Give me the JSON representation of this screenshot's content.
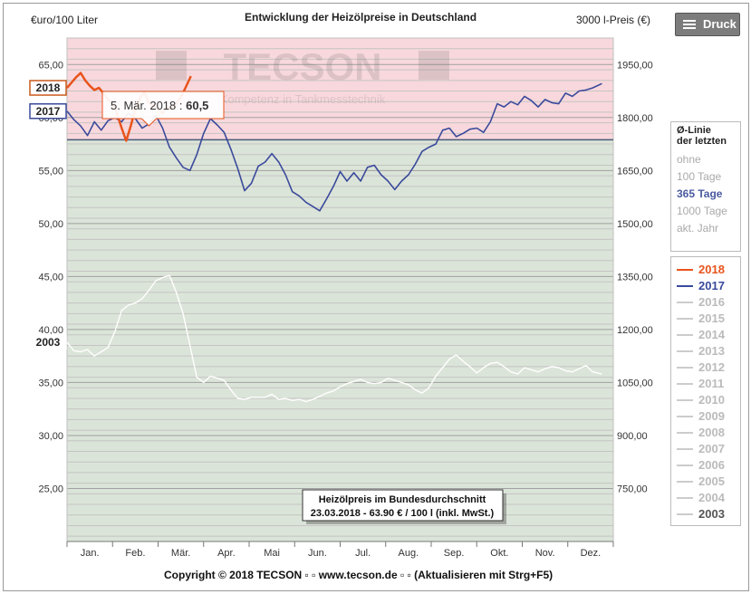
{
  "header": {
    "ylabel_left": "€uro/100 Liter",
    "title": "Entwicklung der Heizölpreise in Deutschland",
    "ylabel_right": "3000 l-Preis (€)"
  },
  "druck_button": {
    "label": "Druck",
    "icon": "menu-icon"
  },
  "watermark": {
    "logo_text": "TECSON",
    "subtitle": "Kompetenz in Tankmesstechnik"
  },
  "tooltip": {
    "date": "5. Mär. 2018 :",
    "value": "60,5"
  },
  "info_box": {
    "line1": "Heizölpreis im Bundesdurchschnitt",
    "line2": "23.03.2018 - 63.90 € / 100 l (inkl. MwSt.)"
  },
  "footer": {
    "copyright": "Copyright © 2018 TECSON ▫ ▫ www.tecson.de ▫ ▫ (Aktualisieren mit Strg+F5)"
  },
  "avg_panel": {
    "heading_1": "Ø-Linie",
    "heading_2": "der letzten",
    "options": [
      {
        "label": "ohne",
        "active": false
      },
      {
        "label": "100 Tage",
        "active": false
      },
      {
        "label": "365 Tage",
        "active": true
      },
      {
        "label": "1000 Tage",
        "active": false
      },
      {
        "label": "akt. Jahr",
        "active": false
      }
    ]
  },
  "legend": [
    {
      "label": "2018",
      "color": "#e8541c",
      "active": true
    },
    {
      "label": "2017",
      "color": "#3a4a9c",
      "active": true
    },
    {
      "label": "2016",
      "color": "#cccccc",
      "active": false
    },
    {
      "label": "2015",
      "color": "#cccccc",
      "active": false
    },
    {
      "label": "2014",
      "color": "#cccccc",
      "active": false
    },
    {
      "label": "2013",
      "color": "#cccccc",
      "active": false
    },
    {
      "label": "2012",
      "color": "#cccccc",
      "active": false
    },
    {
      "label": "2011",
      "color": "#cccccc",
      "active": false
    },
    {
      "label": "2010",
      "color": "#cccccc",
      "active": false
    },
    {
      "label": "2009",
      "color": "#cccccc",
      "active": false
    },
    {
      "label": "2008",
      "color": "#cccccc",
      "active": false
    },
    {
      "label": "2007",
      "color": "#cccccc",
      "active": false
    },
    {
      "label": "2006",
      "color": "#cccccc",
      "active": false
    },
    {
      "label": "2005",
      "color": "#cccccc",
      "active": false
    },
    {
      "label": "2004",
      "color": "#cccccc",
      "active": false
    },
    {
      "label": "2003",
      "color": "#555555",
      "active": true
    }
  ],
  "chart_data": {
    "type": "line",
    "title": "Entwicklung der Heizölpreise in Deutschland",
    "ylabel": "€uro/100 Liter",
    "ylabel_right": "3000 l-Preis (€)",
    "ylim": [
      20,
      67.5
    ],
    "y_ticks": [
      "25,00",
      "30,00",
      "35,00",
      "40,00",
      "45,00",
      "50,00",
      "55,00",
      "60,00",
      "65,00"
    ],
    "y_tick_values": [
      25,
      30,
      35,
      40,
      45,
      50,
      55,
      60,
      65
    ],
    "y2_ticks": [
      "750,00",
      "900,00",
      "1050,00",
      "1200,00",
      "1350,00",
      "1500,00",
      "1650,00",
      "1800,00",
      "1950,00"
    ],
    "y2_tick_values": [
      750,
      900,
      1050,
      1200,
      1350,
      1500,
      1650,
      1800,
      1950
    ],
    "x_categories": [
      "Jan.",
      "Feb.",
      "Mär.",
      "Apr.",
      "Mai",
      "Jun.",
      "Jul.",
      "Aug.",
      "Sep.",
      "Okt.",
      "Nov.",
      "Dez."
    ],
    "avg_line_value": 57.9,
    "band_colors": {
      "above": "#f8d8dc",
      "below": "#dbe4d8"
    },
    "grid": true,
    "legend_position": "right",
    "series": [
      {
        "name": "2018",
        "color": "#e8541c",
        "stroke_width": 2.5,
        "label_color": "#c85a1e",
        "x": [
          0,
          0.1,
          0.2,
          0.3,
          0.4,
          0.5,
          0.6,
          0.7,
          0.8,
          0.9,
          1.0,
          1.1,
          1.2,
          1.3,
          1.4,
          1.5,
          1.6,
          1.7,
          1.8,
          1.9,
          2.0,
          2.1,
          2.2,
          2.3,
          2.4,
          2.5,
          2.6,
          2.72
        ],
        "values": [
          62.8,
          63.3,
          63.8,
          64.2,
          63.5,
          63.0,
          62.6,
          62.8,
          62.3,
          61.7,
          61.3,
          60.3,
          59.0,
          57.8,
          59.2,
          60.8,
          61.8,
          62.4,
          61.4,
          61.1,
          60.8,
          60.4,
          61.0,
          60.8,
          61.3,
          61.9,
          62.8,
          63.9
        ]
      },
      {
        "name": "2017",
        "color": "#3a4a9c",
        "stroke_width": 1.6,
        "label_color": "#3a4a9c",
        "x": [
          0,
          0.15,
          0.3,
          0.45,
          0.6,
          0.75,
          0.9,
          1.05,
          1.2,
          1.35,
          1.5,
          1.65,
          1.8,
          1.95,
          2.1,
          2.25,
          2.4,
          2.55,
          2.7,
          2.85,
          3.0,
          3.15,
          3.3,
          3.45,
          3.6,
          3.75,
          3.9,
          4.05,
          4.2,
          4.35,
          4.5,
          4.65,
          4.8,
          4.95,
          5.1,
          5.25,
          5.4,
          5.55,
          5.7,
          5.85,
          6.0,
          6.15,
          6.3,
          6.45,
          6.6,
          6.75,
          6.9,
          7.05,
          7.2,
          7.35,
          7.5,
          7.65,
          7.8,
          7.95,
          8.1,
          8.25,
          8.4,
          8.55,
          8.7,
          8.85,
          9.0,
          9.15,
          9.3,
          9.45,
          9.6,
          9.75,
          9.9,
          10.05,
          10.2,
          10.35,
          10.5,
          10.65,
          10.8,
          10.95,
          11.1,
          11.25,
          11.4,
          11.55,
          11.75
        ],
        "values": [
          60.6,
          59.8,
          59.2,
          58.3,
          59.6,
          58.8,
          59.7,
          60.0,
          59.6,
          60.4,
          59.9,
          59.0,
          59.4,
          60.2,
          59.0,
          57.2,
          56.2,
          55.3,
          55.0,
          56.5,
          58.5,
          59.9,
          59.3,
          58.6,
          57.0,
          55.2,
          53.1,
          53.8,
          55.4,
          55.8,
          56.6,
          55.8,
          54.6,
          53.0,
          52.6,
          52.0,
          51.6,
          51.2,
          52.3,
          53.5,
          54.9,
          54.0,
          54.8,
          54.0,
          55.3,
          55.5,
          54.6,
          54.0,
          53.2,
          54.0,
          54.6,
          55.6,
          56.8,
          57.2,
          57.5,
          58.8,
          59.0,
          58.2,
          58.5,
          58.9,
          59.0,
          58.6,
          59.6,
          61.3,
          61.0,
          61.5,
          61.2,
          62.0,
          61.6,
          61.0,
          61.7,
          61.4,
          61.3,
          62.3,
          62.0,
          62.5,
          62.6,
          62.8,
          63.2
        ]
      },
      {
        "name": "2003",
        "color": "#ffffff",
        "stroke_width": 1.4,
        "label_color": "#444444",
        "x": [
          0,
          0.15,
          0.3,
          0.45,
          0.6,
          0.75,
          0.9,
          1.05,
          1.2,
          1.35,
          1.5,
          1.65,
          1.8,
          1.95,
          2.1,
          2.25,
          2.4,
          2.55,
          2.7,
          2.85,
          3.0,
          3.15,
          3.3,
          3.45,
          3.6,
          3.75,
          3.9,
          4.05,
          4.2,
          4.35,
          4.5,
          4.65,
          4.8,
          4.95,
          5.1,
          5.25,
          5.4,
          5.55,
          5.7,
          5.85,
          6.0,
          6.15,
          6.3,
          6.45,
          6.6,
          6.75,
          6.9,
          7.05,
          7.2,
          7.35,
          7.5,
          7.65,
          7.8,
          7.95,
          8.1,
          8.25,
          8.4,
          8.55,
          8.7,
          8.85,
          9.0,
          9.15,
          9.3,
          9.45,
          9.6,
          9.75,
          9.9,
          10.05,
          10.2,
          10.35,
          10.5,
          10.65,
          10.8,
          10.95,
          11.1,
          11.25,
          11.4,
          11.55,
          11.75
        ],
        "values": [
          38.8,
          38.0,
          37.9,
          38.1,
          37.5,
          37.9,
          38.3,
          39.8,
          41.8,
          42.3,
          42.5,
          42.9,
          43.7,
          44.6,
          44.9,
          45.1,
          43.5,
          41.5,
          38.5,
          35.5,
          35.0,
          35.6,
          35.4,
          35.2,
          34.3,
          33.5,
          33.4,
          33.6,
          33.6,
          33.6,
          33.9,
          33.4,
          33.5,
          33.3,
          33.4,
          33.2,
          33.4,
          33.7,
          34.0,
          34.2,
          34.6,
          34.9,
          35.1,
          35.3,
          35.0,
          34.9,
          35.0,
          35.4,
          35.2,
          35.0,
          34.8,
          34.3,
          34.0,
          34.5,
          35.6,
          36.4,
          37.2,
          37.6,
          37.0,
          36.5,
          35.9,
          36.4,
          36.8,
          36.9,
          36.5,
          36.0,
          35.8,
          36.4,
          36.2,
          36.0,
          36.3,
          36.5,
          36.4,
          36.1,
          36.0,
          36.3,
          36.6,
          36.0,
          35.8
        ]
      }
    ]
  }
}
